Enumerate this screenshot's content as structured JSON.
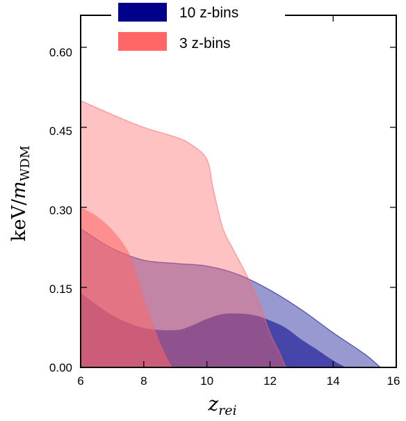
{
  "chart_data": {
    "type": "area",
    "xlabel": {
      "base": "z",
      "sub": "rei"
    },
    "ylabel": {
      "prefix": "keV/",
      "var": "m",
      "sub": "WDM"
    },
    "xlim": [
      6,
      16
    ],
    "ylim": [
      0,
      0.66
    ],
    "xticks": [
      "6",
      "8",
      "10",
      "12",
      "14",
      "16"
    ],
    "yticks": [
      "0.00",
      "0.15",
      "0.30",
      "0.45",
      "0.60"
    ],
    "grid": false,
    "legend_position": "top-center",
    "series": [
      {
        "name": "10 z-bins",
        "color": "#00008b",
        "inner": [
          [
            6,
            0.14
          ],
          [
            7,
            0.098
          ],
          [
            8,
            0.074
          ],
          [
            9,
            0.07
          ],
          [
            9.5,
            0.078
          ],
          [
            10,
            0.091
          ],
          [
            10.5,
            0.1
          ],
          [
            11,
            0.101
          ],
          [
            11.5,
            0.098
          ],
          [
            12,
            0.088
          ],
          [
            12.5,
            0.074
          ],
          [
            13,
            0.052
          ],
          [
            13.5,
            0.033
          ],
          [
            14,
            0.013
          ],
          [
            14.4,
            0
          ]
        ],
        "outer": [
          [
            6,
            0.26
          ],
          [
            7,
            0.223
          ],
          [
            8,
            0.201
          ],
          [
            9,
            0.195
          ],
          [
            10,
            0.19
          ],
          [
            11,
            0.174
          ],
          [
            12,
            0.145
          ],
          [
            13,
            0.108
          ],
          [
            14,
            0.065
          ],
          [
            15,
            0.025
          ],
          [
            15.5,
            0
          ]
        ]
      },
      {
        "name": "3 z-bins",
        "color": "#ff6666",
        "inner": [
          [
            6,
            0.3
          ],
          [
            6.5,
            0.284
          ],
          [
            7,
            0.258
          ],
          [
            7.5,
            0.218
          ],
          [
            7.8,
            0.17
          ],
          [
            8,
            0.13
          ],
          [
            8.3,
            0.08
          ],
          [
            8.6,
            0.035
          ],
          [
            8.9,
            0
          ]
        ],
        "outer": [
          [
            6,
            0.5
          ],
          [
            7,
            0.474
          ],
          [
            8,
            0.45
          ],
          [
            9,
            0.432
          ],
          [
            9.5,
            0.418
          ],
          [
            10,
            0.39
          ],
          [
            10.2,
            0.335
          ],
          [
            10.5,
            0.262
          ],
          [
            10.8,
            0.225
          ],
          [
            11.2,
            0.18
          ],
          [
            11.6,
            0.13
          ],
          [
            12,
            0.065
          ],
          [
            12.3,
            0.028
          ],
          [
            12.5,
            0
          ]
        ]
      }
    ]
  }
}
